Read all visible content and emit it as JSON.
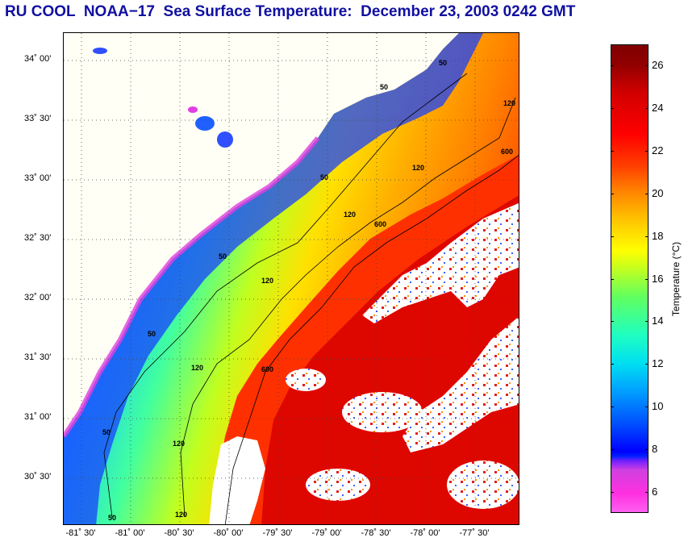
{
  "title": "RU COOL  NOAA−17  Sea Surface Temperature:  December 23, 2003 0242 GMT",
  "map": {
    "lat_labels": [
      "34˚ 00'",
      "33˚ 30'",
      "33˚ 00'",
      "32˚ 30'",
      "32˚ 00'",
      "31˚ 30'",
      "31˚ 00'",
      "30˚ 30'"
    ],
    "lon_labels": [
      "-81˚ 30'",
      "-81˚ 00'",
      "-80˚ 30'",
      "-80˚ 00'",
      "-79˚ 30'",
      "-79˚ 00'",
      "-78˚ 30'",
      "-78˚ 00'",
      "-77˚ 30'"
    ],
    "isobath_labels": [
      "50",
      "50",
      "50",
      "50",
      "50",
      "50",
      "50",
      "120",
      "120",
      "120",
      "120",
      "120",
      "120",
      "120",
      "600",
      "600",
      "600"
    ]
  },
  "colorbar": {
    "title": "Temperature (°C)",
    "ticks": [
      "26",
      "24",
      "22",
      "20",
      "18",
      "16",
      "14",
      "12",
      "10",
      "8",
      "6"
    ],
    "range": [
      5,
      27
    ]
  }
}
